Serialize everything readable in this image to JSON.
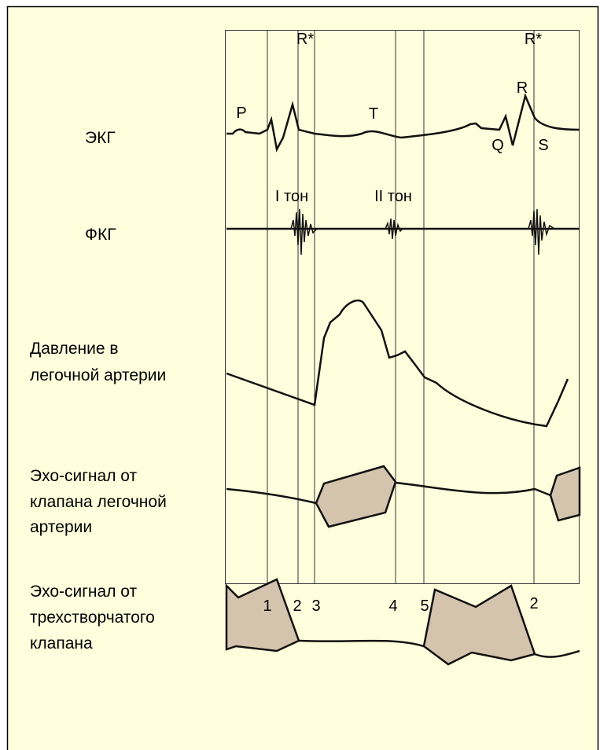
{
  "markers": {
    "top": [
      "R*",
      "R*"
    ],
    "bottom": [
      "1",
      "2",
      "3",
      "4",
      "5",
      "2"
    ]
  },
  "waves": {
    "ecg": [
      "P",
      "T",
      "R",
      "Q",
      "S"
    ],
    "pcg": [
      "I тон",
      "II тон"
    ]
  },
  "rows": [
    {
      "label": [
        "ЭКГ"
      ]
    },
    {
      "label": [
        "ФКГ"
      ]
    },
    {
      "label": [
        "Давление в",
        "легочной артерии"
      ]
    },
    {
      "label": [
        "Эхо-сигнал от",
        "клапана легочной",
        "артерии"
      ]
    },
    {
      "label": [
        "Эхо-сигнал от",
        "трехстворчатого",
        "клапана"
      ]
    }
  ]
}
